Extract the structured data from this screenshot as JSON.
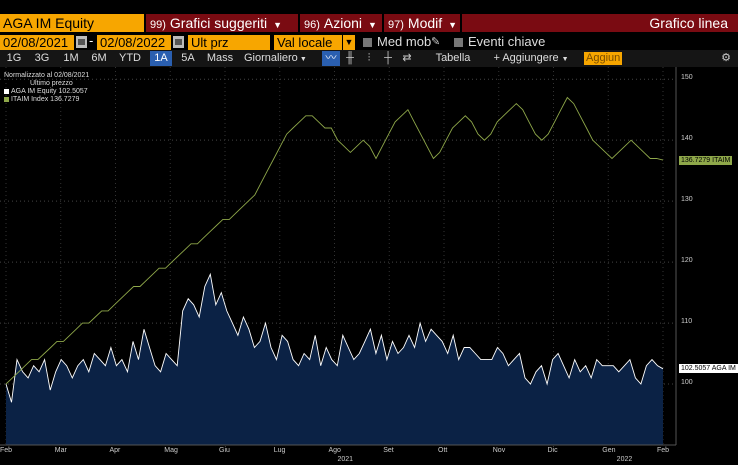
{
  "toolbar": {
    "ticker": "AGA IM Equity",
    "menus": [
      {
        "num": "99)",
        "label": "Grafici suggeriti"
      },
      {
        "num": "96)",
        "label": "Azioni"
      },
      {
        "num": "97)",
        "label": "Modif"
      }
    ],
    "chart_type": "Grafico linea"
  },
  "controls": {
    "date_from": "02/08/2021",
    "date_to": "02/08/2022",
    "dash": "-",
    "price_field": "Ult prz",
    "currency": "Val locale",
    "moving_avg": "Med mob",
    "key_events": "Eventi chiave"
  },
  "ranges": {
    "items": [
      "1G",
      "3G",
      "1M",
      "6M",
      "YTD",
      "1A",
      "5A",
      "Mass",
      "Giornaliero"
    ],
    "active": "1A",
    "table": "Tabella",
    "add": "+ Aggiungere",
    "add_short": "Aggiun"
  },
  "colors": {
    "accent_orange": "#f7a600",
    "menu_red": "#7a0b12",
    "series_white": "#ffffff",
    "series_green": "#8fa84a",
    "area_fill": "#0b2245",
    "active_blue": "#2a5fb0"
  },
  "legend": {
    "normalized": "Normalizzato al 02/08/2021",
    "last_price": "Ultimo prezzo",
    "entries": [
      {
        "name": "AGA IM Equity",
        "value": "102.5057"
      },
      {
        "name": "ITAIM Index",
        "value": "136.7279"
      }
    ]
  },
  "chart_data": {
    "type": "line",
    "title": "",
    "ylim": [
      90,
      152
    ],
    "y_ticks": [
      100,
      110,
      120,
      130,
      140,
      150
    ],
    "x_ticks": [
      "Feb",
      "Mar",
      "Apr",
      "Mag",
      "Giu",
      "Lug",
      "Ago",
      "Set",
      "Ott",
      "Nov",
      "Dic",
      "Gen",
      "Feb"
    ],
    "x_year_labels": [
      "2021",
      "2022"
    ],
    "series": [
      {
        "name": "AGA IM Equity",
        "last": 102.5057,
        "last_label": "102.5057 AGA IM",
        "values": [
          100,
          97,
          104,
          102,
          101,
          103,
          102,
          104,
          99,
          102,
          104,
          103,
          101,
          103,
          104,
          102,
          105,
          104,
          103,
          106,
          103,
          104,
          102,
          107,
          104,
          109,
          106,
          103,
          102,
          105,
          104,
          103,
          112,
          114,
          113,
          111,
          116,
          118,
          113,
          115,
          112,
          110,
          108,
          111,
          109,
          106,
          107,
          110,
          106,
          104,
          108,
          107,
          104,
          103,
          105,
          104,
          108,
          103,
          106,
          104,
          103,
          108,
          106,
          104,
          105,
          107,
          109,
          105,
          108,
          104,
          107,
          105,
          106,
          108,
          106,
          110,
          107,
          109,
          108,
          107,
          105,
          108,
          104,
          106,
          106,
          105,
          104,
          104,
          104,
          106,
          105,
          103,
          104,
          105,
          101,
          100,
          102,
          103,
          100,
          104,
          105,
          103,
          101,
          104,
          102,
          103,
          101,
          104,
          103,
          103,
          103,
          102,
          103,
          104,
          101,
          100,
          103,
          104,
          103,
          102.5057
        ]
      },
      {
        "name": "ITAIM Index",
        "last": 136.7279,
        "last_label": "136.7279 ITAIM",
        "values": [
          100,
          101,
          102,
          103,
          104,
          104,
          105,
          106,
          107,
          107,
          108,
          109,
          110,
          110,
          111,
          112,
          112,
          113,
          114,
          115,
          116,
          116,
          117,
          118,
          119,
          119,
          120,
          121,
          122,
          123,
          123,
          124,
          125,
          126,
          127,
          127,
          128,
          129,
          130,
          131,
          133,
          135,
          137,
          139,
          141,
          142,
          143,
          144,
          144,
          143,
          142,
          142,
          140,
          139,
          138,
          139,
          140,
          139,
          137,
          139,
          141,
          143,
          144,
          145,
          143,
          141,
          139,
          137,
          138,
          140,
          142,
          143,
          144,
          143,
          141,
          140,
          141,
          143,
          144,
          145,
          146,
          145,
          143,
          141,
          140,
          141,
          143,
          145,
          147,
          146,
          144,
          142,
          140,
          139,
          138,
          137,
          138,
          139,
          140,
          139,
          138,
          137,
          137,
          136.7279
        ]
      }
    ]
  }
}
